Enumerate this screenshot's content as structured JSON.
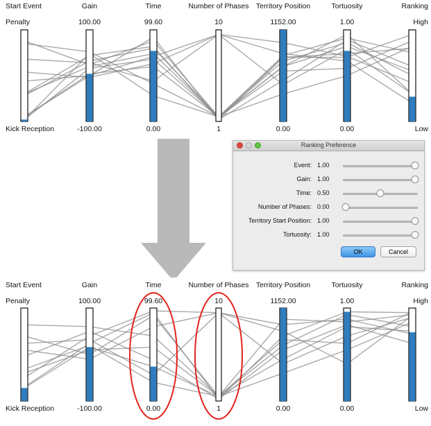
{
  "axes": [
    {
      "id": "start-event",
      "title": "Start Event",
      "top_label": "Penalty",
      "bottom_label": "Kick Reception"
    },
    {
      "id": "gain",
      "title": "Gain",
      "top_label": "100.00",
      "bottom_label": "-100.00"
    },
    {
      "id": "time",
      "title": "Time",
      "top_label": "99.60",
      "bottom_label": "0.00"
    },
    {
      "id": "number-of-phases",
      "title": "Number of Phases",
      "top_label": "10",
      "bottom_label": "1"
    },
    {
      "id": "territory-position",
      "title": "Territory Position",
      "top_label": "1152.00",
      "bottom_label": "0.00"
    },
    {
      "id": "tortuosity",
      "title": "Tortuosity",
      "top_label": "1.00",
      "bottom_label": "0.00"
    },
    {
      "id": "ranking",
      "title": "Ranking",
      "top_label": "High",
      "bottom_label": "Low"
    }
  ],
  "top_plot": {
    "bar_fill_fraction": [
      0.02,
      0.52,
      0.77,
      0.0,
      1.0,
      0.77,
      0.27
    ],
    "bar_style": [
      "fill",
      "fill",
      "fill",
      "outline",
      "fill",
      "fill",
      "fill"
    ],
    "lines": [
      [
        0.02,
        0.74,
        0.28,
        0.05,
        0.6,
        0.95,
        0.3
      ],
      [
        0.02,
        0.58,
        0.68,
        0.05,
        0.6,
        0.82,
        0.55
      ],
      [
        0.05,
        0.52,
        0.6,
        0.05,
        0.7,
        0.74,
        0.8
      ],
      [
        0.05,
        0.5,
        0.92,
        0.02,
        0.7,
        0.7,
        0.95
      ],
      [
        0.3,
        0.72,
        0.82,
        0.02,
        0.45,
        0.89,
        0.6
      ],
      [
        0.3,
        0.6,
        0.74,
        0.05,
        0.72,
        0.91,
        0.75
      ],
      [
        0.44,
        0.5,
        0.71,
        0.95,
        0.4,
        0.79,
        0.3
      ],
      [
        0.54,
        0.48,
        0.63,
        0.95,
        0.86,
        0.71,
        0.42
      ],
      [
        0.68,
        0.64,
        0.44,
        0.95,
        0.74,
        0.66,
        0.2
      ],
      [
        0.85,
        0.76,
        0.41,
        0.05,
        0.3,
        0.5,
        0.82
      ],
      [
        0.88,
        0.62,
        0.88,
        0.05,
        0.55,
        0.58,
        0.88
      ],
      [
        0.28,
        0.66,
        0.8,
        0.05,
        0.66,
        0.86,
        0.5
      ]
    ]
  },
  "bottom_plot": {
    "bar_fill_fraction": [
      0.14,
      0.58,
      0.37,
      0.0,
      1.0,
      0.96,
      0.74
    ],
    "bar_style": [
      "fill",
      "fill",
      "fill",
      "outline",
      "fill",
      "fill",
      "fill"
    ],
    "lines": [
      [
        0.14,
        0.58,
        0.37,
        0.05,
        0.6,
        0.93,
        0.8
      ],
      [
        0.15,
        0.62,
        0.95,
        0.02,
        0.7,
        0.96,
        0.95
      ],
      [
        0.3,
        0.55,
        0.58,
        0.05,
        0.88,
        0.85,
        0.93
      ],
      [
        0.48,
        0.75,
        0.44,
        0.02,
        0.55,
        0.82,
        0.62
      ],
      [
        0.55,
        0.45,
        0.8,
        0.95,
        0.4,
        0.7,
        0.9
      ],
      [
        0.62,
        0.66,
        0.28,
        0.95,
        0.75,
        0.4,
        0.92
      ],
      [
        0.7,
        0.5,
        0.92,
        0.05,
        0.3,
        0.55,
        0.85
      ],
      [
        0.82,
        0.8,
        0.7,
        0.05,
        0.45,
        0.8,
        0.75
      ],
      [
        0.34,
        0.6,
        0.2,
        0.05,
        0.66,
        0.62,
        0.96
      ],
      [
        0.25,
        0.7,
        0.97,
        0.95,
        0.82,
        0.88,
        0.72
      ]
    ],
    "highlighted_axes": [
      "time",
      "number-of-phases"
    ]
  },
  "dialog": {
    "title": "Ranking Preference",
    "rows": [
      {
        "label": "Event:",
        "value": "1.00",
        "slider": 1.0
      },
      {
        "label": "Gain:",
        "value": "1.00",
        "slider": 1.0
      },
      {
        "label": "Time:",
        "value": "0.50",
        "slider": 0.5
      },
      {
        "label": "Number of Phases:",
        "value": "0.00",
        "slider": 0.0
      },
      {
        "label": "Territory Start Position:",
        "value": "1.00",
        "slider": 1.0
      },
      {
        "label": "Tortuosity:",
        "value": "1.00",
        "slider": 1.0
      }
    ],
    "ok_label": "OK",
    "cancel_label": "Cancel"
  },
  "colors": {
    "bar_fill": "#2f7dbf",
    "polyline": "#8c8c8c",
    "highlight": "#e2231a",
    "arrow": "#b9b9b9"
  }
}
